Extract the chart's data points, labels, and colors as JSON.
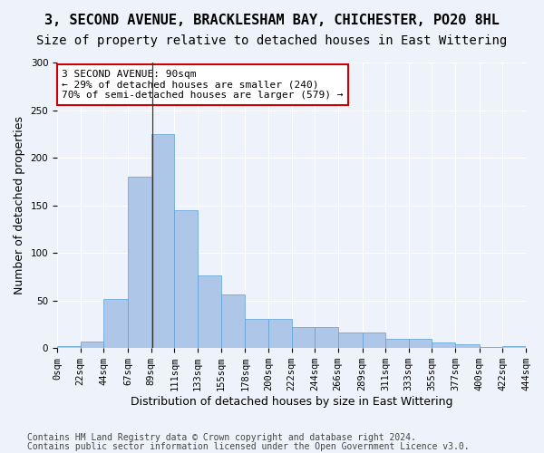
{
  "title1": "3, SECOND AVENUE, BRACKLESHAM BAY, CHICHESTER, PO20 8HL",
  "title2": "Size of property relative to detached houses in East Wittering",
  "xlabel": "Distribution of detached houses by size in East Wittering",
  "ylabel": "Number of detached properties",
  "bar_color": "#aec6e8",
  "bar_edge_color": "#5a9fd4",
  "annotation_box_color": "#ffffff",
  "annotation_border_color": "#cc0000",
  "annotation_line1": "3 SECOND AVENUE: 90sqm",
  "annotation_line2": "← 29% of detached houses are smaller (240)",
  "annotation_line3": "70% of semi-detached houses are larger (579) →",
  "property_line_x": 90,
  "footer1": "Contains HM Land Registry data © Crown copyright and database right 2024.",
  "footer2": "Contains public sector information licensed under the Open Government Licence v3.0.",
  "background_color": "#eef2fa",
  "grid_color": "#ffffff",
  "categories": [
    "0sqm",
    "22sqm",
    "44sqm",
    "67sqm",
    "89sqm",
    "111sqm",
    "133sqm",
    "155sqm",
    "178sqm",
    "200sqm",
    "222sqm",
    "244sqm",
    "266sqm",
    "289sqm",
    "311sqm",
    "333sqm",
    "355sqm",
    "377sqm",
    "400sqm",
    "422sqm",
    "444sqm"
  ],
  "bin_edges": [
    0,
    22,
    44,
    67,
    89,
    111,
    133,
    155,
    178,
    200,
    222,
    244,
    266,
    289,
    311,
    333,
    355,
    377,
    400,
    422,
    444
  ],
  "values": [
    2,
    7,
    52,
    180,
    225,
    145,
    76,
    56,
    31,
    31,
    22,
    22,
    16,
    16,
    10,
    10,
    6,
    4,
    1,
    2
  ],
  "ylim": [
    0,
    300
  ],
  "yticks": [
    0,
    50,
    100,
    150,
    200,
    250,
    300
  ],
  "title1_fontsize": 11,
  "title2_fontsize": 10,
  "xlabel_fontsize": 9,
  "ylabel_fontsize": 9,
  "tick_fontsize": 7.5,
  "footer_fontsize": 7,
  "vline_color": "#333333",
  "ann_fontsize": 8
}
